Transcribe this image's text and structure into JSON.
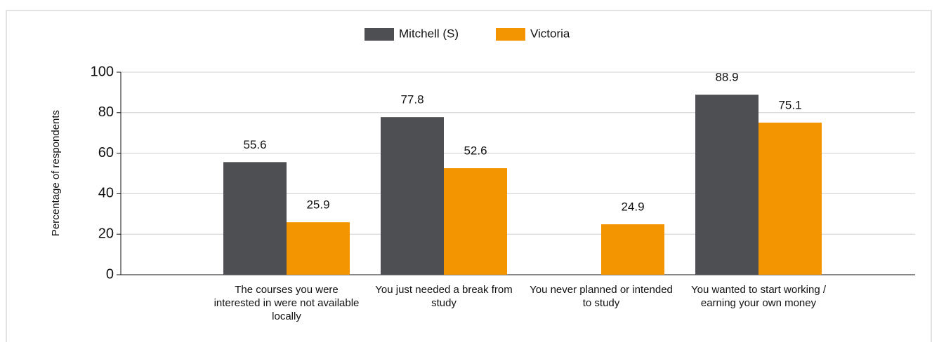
{
  "chart_data": {
    "type": "bar",
    "y_label": "Percentage of respondents",
    "categories": [
      "The courses you were interested in were not available locally",
      "You just needed a break from study",
      "You never planned or intended to study",
      "You wanted to start working / earning your own money"
    ],
    "series": [
      {
        "name": "Mitchell (S)",
        "color": "#4d4f53",
        "values": [
          55.6,
          77.8,
          null,
          88.9
        ]
      },
      {
        "name": "Victoria",
        "color": "#f39500",
        "values": [
          25.9,
          52.6,
          24.9,
          75.1
        ]
      }
    ],
    "ylim": [
      0,
      100
    ],
    "yticks": [
      0,
      20,
      40,
      60,
      80,
      100
    ],
    "grid": true,
    "legend": "top"
  }
}
